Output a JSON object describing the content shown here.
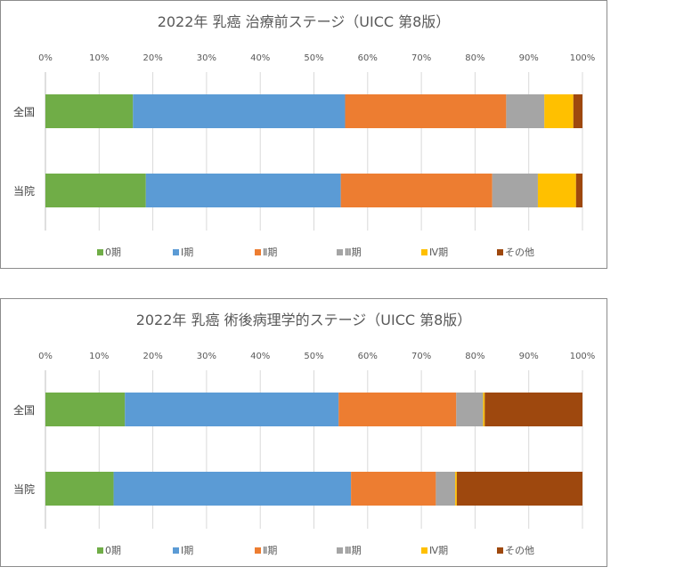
{
  "chart_data": [
    {
      "type": "bar",
      "orientation": "horizontal",
      "stacked": "percent",
      "title": "2022年 乳癌 治療前ステージ（UICC 第8版）",
      "categories": [
        "全国",
        "当院"
      ],
      "x_ticks": [
        "0%",
        "10%",
        "20%",
        "30%",
        "40%",
        "50%",
        "60%",
        "70%",
        "80%",
        "90%",
        "100%"
      ],
      "xlim": [
        0,
        100
      ],
      "legend_position": "bottom",
      "grid": true,
      "series": [
        {
          "name": "0期",
          "color": "#70ad47",
          "values": [
            16.3,
            18.7
          ]
        },
        {
          "name": "Ⅰ期",
          "color": "#5b9bd5",
          "values": [
            39.5,
            36.3
          ]
        },
        {
          "name": "Ⅱ期",
          "color": "#ed7d31",
          "values": [
            30.0,
            28.2
          ]
        },
        {
          "name": "Ⅲ期",
          "color": "#a5a5a5",
          "values": [
            7.1,
            8.5
          ]
        },
        {
          "name": "Ⅳ期",
          "color": "#ffc000",
          "values": [
            5.4,
            7.1
          ]
        },
        {
          "name": "その他",
          "color": "#9e480e",
          "values": [
            1.7,
            1.2
          ]
        }
      ]
    },
    {
      "type": "bar",
      "orientation": "horizontal",
      "stacked": "percent",
      "title": "2022年 乳癌 術後病理学的ステージ（UICC 第8版）",
      "categories": [
        "全国",
        "当院"
      ],
      "x_ticks": [
        "0%",
        "10%",
        "20%",
        "30%",
        "40%",
        "50%",
        "60%",
        "70%",
        "80%",
        "90%",
        "100%"
      ],
      "xlim": [
        0,
        100
      ],
      "legend_position": "bottom",
      "grid": true,
      "series": [
        {
          "name": "0期",
          "color": "#70ad47",
          "values": [
            14.8,
            12.7
          ]
        },
        {
          "name": "Ⅰ期",
          "color": "#5b9bd5",
          "values": [
            39.8,
            44.2
          ]
        },
        {
          "name": "Ⅱ期",
          "color": "#ed7d31",
          "values": [
            21.9,
            15.8
          ]
        },
        {
          "name": "Ⅲ期",
          "color": "#a5a5a5",
          "values": [
            5.0,
            3.6
          ]
        },
        {
          "name": "Ⅳ期",
          "color": "#ffc000",
          "values": [
            0.3,
            0.3
          ]
        },
        {
          "name": "その他",
          "color": "#9e480e",
          "values": [
            18.2,
            23.4
          ]
        }
      ]
    }
  ]
}
